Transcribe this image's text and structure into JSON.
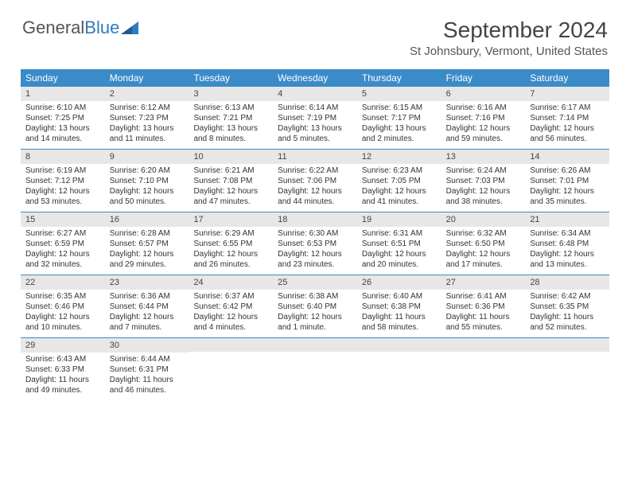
{
  "logo": {
    "text1": "General",
    "text2": "Blue"
  },
  "title": {
    "month": "September 2024",
    "location": "St Johnsbury, Vermont, United States"
  },
  "colors": {
    "header_bg": "#3b8bc9",
    "header_text": "#ffffff",
    "daynum_bg": "#e7e7e7",
    "week_border": "#3b8bc9",
    "logo_gray": "#555555",
    "logo_blue": "#2f7bbf"
  },
  "day_names": [
    "Sunday",
    "Monday",
    "Tuesday",
    "Wednesday",
    "Thursday",
    "Friday",
    "Saturday"
  ],
  "weeks": [
    [
      {
        "n": "1",
        "sr": "Sunrise: 6:10 AM",
        "ss": "Sunset: 7:25 PM",
        "d1": "Daylight: 13 hours",
        "d2": "and 14 minutes."
      },
      {
        "n": "2",
        "sr": "Sunrise: 6:12 AM",
        "ss": "Sunset: 7:23 PM",
        "d1": "Daylight: 13 hours",
        "d2": "and 11 minutes."
      },
      {
        "n": "3",
        "sr": "Sunrise: 6:13 AM",
        "ss": "Sunset: 7:21 PM",
        "d1": "Daylight: 13 hours",
        "d2": "and 8 minutes."
      },
      {
        "n": "4",
        "sr": "Sunrise: 6:14 AM",
        "ss": "Sunset: 7:19 PM",
        "d1": "Daylight: 13 hours",
        "d2": "and 5 minutes."
      },
      {
        "n": "5",
        "sr": "Sunrise: 6:15 AM",
        "ss": "Sunset: 7:17 PM",
        "d1": "Daylight: 13 hours",
        "d2": "and 2 minutes."
      },
      {
        "n": "6",
        "sr": "Sunrise: 6:16 AM",
        "ss": "Sunset: 7:16 PM",
        "d1": "Daylight: 12 hours",
        "d2": "and 59 minutes."
      },
      {
        "n": "7",
        "sr": "Sunrise: 6:17 AM",
        "ss": "Sunset: 7:14 PM",
        "d1": "Daylight: 12 hours",
        "d2": "and 56 minutes."
      }
    ],
    [
      {
        "n": "8",
        "sr": "Sunrise: 6:19 AM",
        "ss": "Sunset: 7:12 PM",
        "d1": "Daylight: 12 hours",
        "d2": "and 53 minutes."
      },
      {
        "n": "9",
        "sr": "Sunrise: 6:20 AM",
        "ss": "Sunset: 7:10 PM",
        "d1": "Daylight: 12 hours",
        "d2": "and 50 minutes."
      },
      {
        "n": "10",
        "sr": "Sunrise: 6:21 AM",
        "ss": "Sunset: 7:08 PM",
        "d1": "Daylight: 12 hours",
        "d2": "and 47 minutes."
      },
      {
        "n": "11",
        "sr": "Sunrise: 6:22 AM",
        "ss": "Sunset: 7:06 PM",
        "d1": "Daylight: 12 hours",
        "d2": "and 44 minutes."
      },
      {
        "n": "12",
        "sr": "Sunrise: 6:23 AM",
        "ss": "Sunset: 7:05 PM",
        "d1": "Daylight: 12 hours",
        "d2": "and 41 minutes."
      },
      {
        "n": "13",
        "sr": "Sunrise: 6:24 AM",
        "ss": "Sunset: 7:03 PM",
        "d1": "Daylight: 12 hours",
        "d2": "and 38 minutes."
      },
      {
        "n": "14",
        "sr": "Sunrise: 6:26 AM",
        "ss": "Sunset: 7:01 PM",
        "d1": "Daylight: 12 hours",
        "d2": "and 35 minutes."
      }
    ],
    [
      {
        "n": "15",
        "sr": "Sunrise: 6:27 AM",
        "ss": "Sunset: 6:59 PM",
        "d1": "Daylight: 12 hours",
        "d2": "and 32 minutes."
      },
      {
        "n": "16",
        "sr": "Sunrise: 6:28 AM",
        "ss": "Sunset: 6:57 PM",
        "d1": "Daylight: 12 hours",
        "d2": "and 29 minutes."
      },
      {
        "n": "17",
        "sr": "Sunrise: 6:29 AM",
        "ss": "Sunset: 6:55 PM",
        "d1": "Daylight: 12 hours",
        "d2": "and 26 minutes."
      },
      {
        "n": "18",
        "sr": "Sunrise: 6:30 AM",
        "ss": "Sunset: 6:53 PM",
        "d1": "Daylight: 12 hours",
        "d2": "and 23 minutes."
      },
      {
        "n": "19",
        "sr": "Sunrise: 6:31 AM",
        "ss": "Sunset: 6:51 PM",
        "d1": "Daylight: 12 hours",
        "d2": "and 20 minutes."
      },
      {
        "n": "20",
        "sr": "Sunrise: 6:32 AM",
        "ss": "Sunset: 6:50 PM",
        "d1": "Daylight: 12 hours",
        "d2": "and 17 minutes."
      },
      {
        "n": "21",
        "sr": "Sunrise: 6:34 AM",
        "ss": "Sunset: 6:48 PM",
        "d1": "Daylight: 12 hours",
        "d2": "and 13 minutes."
      }
    ],
    [
      {
        "n": "22",
        "sr": "Sunrise: 6:35 AM",
        "ss": "Sunset: 6:46 PM",
        "d1": "Daylight: 12 hours",
        "d2": "and 10 minutes."
      },
      {
        "n": "23",
        "sr": "Sunrise: 6:36 AM",
        "ss": "Sunset: 6:44 PM",
        "d1": "Daylight: 12 hours",
        "d2": "and 7 minutes."
      },
      {
        "n": "24",
        "sr": "Sunrise: 6:37 AM",
        "ss": "Sunset: 6:42 PM",
        "d1": "Daylight: 12 hours",
        "d2": "and 4 minutes."
      },
      {
        "n": "25",
        "sr": "Sunrise: 6:38 AM",
        "ss": "Sunset: 6:40 PM",
        "d1": "Daylight: 12 hours",
        "d2": "and 1 minute."
      },
      {
        "n": "26",
        "sr": "Sunrise: 6:40 AM",
        "ss": "Sunset: 6:38 PM",
        "d1": "Daylight: 11 hours",
        "d2": "and 58 minutes."
      },
      {
        "n": "27",
        "sr": "Sunrise: 6:41 AM",
        "ss": "Sunset: 6:36 PM",
        "d1": "Daylight: 11 hours",
        "d2": "and 55 minutes."
      },
      {
        "n": "28",
        "sr": "Sunrise: 6:42 AM",
        "ss": "Sunset: 6:35 PM",
        "d1": "Daylight: 11 hours",
        "d2": "and 52 minutes."
      }
    ],
    [
      {
        "n": "29",
        "sr": "Sunrise: 6:43 AM",
        "ss": "Sunset: 6:33 PM",
        "d1": "Daylight: 11 hours",
        "d2": "and 49 minutes."
      },
      {
        "n": "30",
        "sr": "Sunrise: 6:44 AM",
        "ss": "Sunset: 6:31 PM",
        "d1": "Daylight: 11 hours",
        "d2": "and 46 minutes."
      },
      {
        "empty": true
      },
      {
        "empty": true
      },
      {
        "empty": true
      },
      {
        "empty": true
      },
      {
        "empty": true
      }
    ]
  ]
}
